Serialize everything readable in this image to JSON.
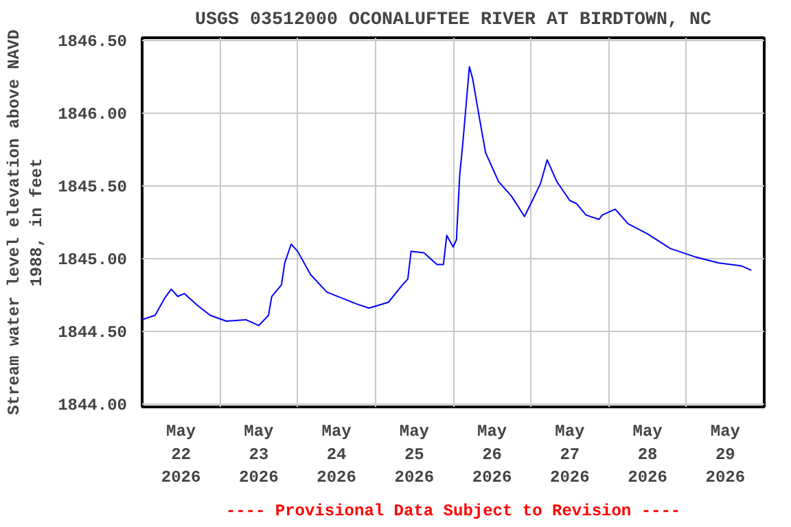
{
  "chart_data": {
    "type": "line",
    "title": "USGS 03512000 OCONALUFTEE RIVER AT BIRDTOWN, NC",
    "ylabel": "Stream water level elevation above NAVD\n1988, in feet",
    "annotations": [
      "---- Provisional Data Subject to Revision ----"
    ],
    "x": [
      "2026-05-22T00:00",
      "2026-05-22T04:00",
      "2026-05-22T07:00",
      "2026-05-22T09:00",
      "2026-05-22T11:00",
      "2026-05-22T13:00",
      "2026-05-22T17:00",
      "2026-05-22T21:00",
      "2026-05-23T02:00",
      "2026-05-23T08:00",
      "2026-05-23T12:00",
      "2026-05-23T15:00",
      "2026-05-23T16:00",
      "2026-05-23T19:00",
      "2026-05-23T20:00",
      "2026-05-23T22:00",
      "2026-05-24T00:00",
      "2026-05-24T04:00",
      "2026-05-24T09:00",
      "2026-05-24T18:00",
      "2026-05-24T22:00",
      "2026-05-25T04:00",
      "2026-05-25T08:00",
      "2026-05-25T10:00",
      "2026-05-25T11:00",
      "2026-05-25T15:00",
      "2026-05-25T19:00",
      "2026-05-25T21:00",
      "2026-05-25T22:00",
      "2026-05-26T00:00",
      "2026-05-26T01:00",
      "2026-05-26T02:00",
      "2026-05-26T03:00",
      "2026-05-26T05:00",
      "2026-05-26T06:00",
      "2026-05-26T08:00",
      "2026-05-26T10:00",
      "2026-05-26T14:00",
      "2026-05-26T18:00",
      "2026-05-26T22:00",
      "2026-05-27T00:00",
      "2026-05-27T03:00",
      "2026-05-27T05:00",
      "2026-05-27T08:00",
      "2026-05-27T12:00",
      "2026-05-27T14:00",
      "2026-05-27T17:00",
      "2026-05-27T21:00",
      "2026-05-27T22:00",
      "2026-05-28T02:00",
      "2026-05-28T06:00",
      "2026-05-28T12:00",
      "2026-05-28T19:00",
      "2026-05-29T03:00",
      "2026-05-29T10:00",
      "2026-05-29T17:00",
      "2026-05-29T20:00"
    ],
    "series": [
      {
        "color": "#0000ff",
        "values": [
          1844.58,
          1844.61,
          1844.73,
          1844.79,
          1844.74,
          1844.76,
          1844.68,
          1844.61,
          1844.57,
          1844.58,
          1844.54,
          1844.61,
          1844.74,
          1844.82,
          1844.97,
          1845.1,
          1845.05,
          1844.89,
          1844.77,
          1844.69,
          1844.66,
          1844.7,
          1844.81,
          1844.86,
          1845.05,
          1845.04,
          1844.96,
          1844.96,
          1845.16,
          1845.08,
          1845.13,
          1845.57,
          1845.8,
          1846.32,
          1846.24,
          1845.98,
          1845.73,
          1845.53,
          1845.43,
          1845.29,
          1845.38,
          1845.52,
          1845.68,
          1845.53,
          1845.4,
          1845.38,
          1845.3,
          1845.27,
          1845.3,
          1845.34,
          1845.24,
          1845.17,
          1845.07,
          1845.01,
          1844.97,
          1844.95,
          1844.92
        ]
      }
    ],
    "xlim": [
      "2026-05-22T00:00",
      "2026-05-30T00:00"
    ],
    "xticks": [
      {
        "value": "2026-05-23T00:00",
        "label": null
      },
      {
        "value": "2026-05-24T00:00",
        "label": null
      },
      {
        "value": "2026-05-25T00:00",
        "label": null
      },
      {
        "value": "2026-05-26T00:00",
        "label": null
      },
      {
        "value": "2026-05-27T00:00",
        "label": null
      },
      {
        "value": "2026-05-28T00:00",
        "label": null
      },
      {
        "value": "2026-05-29T00:00",
        "label": null
      },
      {
        "value": "2026-05-22T12:00",
        "label": "May\n22\n2026"
      },
      {
        "value": "2026-05-23T12:00",
        "label": "May\n23\n2026"
      },
      {
        "value": "2026-05-24T12:00",
        "label": "May\n24\n2026"
      },
      {
        "value": "2026-05-25T12:00",
        "label": "May\n25\n2026"
      },
      {
        "value": "2026-05-26T12:00",
        "label": "May\n26\n2026"
      },
      {
        "value": "2026-05-27T12:00",
        "label": "May\n27\n2026"
      },
      {
        "value": "2026-05-28T12:00",
        "label": "May\n28\n2026"
      },
      {
        "value": "2026-05-29T12:00",
        "label": "May\n29\n2026"
      }
    ],
    "ylim": [
      1843.98,
      1846.52
    ],
    "yticks": [
      {
        "value": 1844.0,
        "label": "1844.00"
      },
      {
        "value": 1844.5,
        "label": "1844.50"
      },
      {
        "value": 1845.0,
        "label": "1845.00"
      },
      {
        "value": 1845.5,
        "label": "1845.50"
      },
      {
        "value": 1846.0,
        "label": "1846.00"
      },
      {
        "value": 1846.5,
        "label": "1846.50"
      }
    ],
    "grid": true,
    "line_style": "solid",
    "marker": "none"
  }
}
